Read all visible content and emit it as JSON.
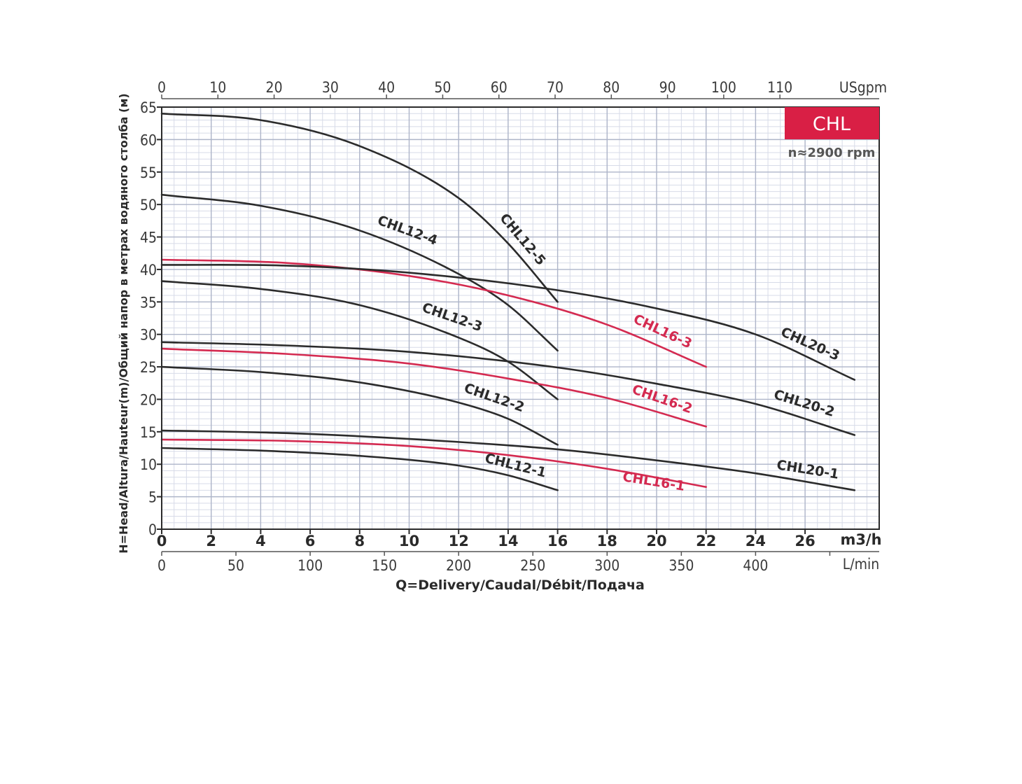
{
  "chart_data": {
    "type": "line",
    "badge": "CHL",
    "speed_note": "n≈2900 rpm",
    "ylabel": "H=Head/Altura/Hauteur(m)/Общий напор в метрах водяного столба (м)",
    "xlabel": "Q=Delivery/Caudal/Débit/Подача",
    "x_unit": "m3/h",
    "top_unit": "USgpm",
    "lmin_unit": "L/min",
    "xlim": [
      0,
      29
    ],
    "ylim": [
      0,
      65
    ],
    "grid": true,
    "x_ticks": [
      0,
      2,
      4,
      6,
      8,
      10,
      12,
      14,
      16,
      18,
      20,
      22,
      24,
      26
    ],
    "y_ticks": [
      0,
      5,
      10,
      15,
      20,
      25,
      30,
      35,
      40,
      45,
      50,
      55,
      60,
      65
    ],
    "usgpm_ticks": [
      0,
      10,
      20,
      30,
      40,
      50,
      60,
      70,
      80,
      90,
      100,
      110
    ],
    "lmin_ticks": [
      0,
      50,
      100,
      150,
      200,
      250,
      300,
      350,
      400
    ],
    "colors": {
      "dark": "#2b2b2b",
      "red": "#d42a50",
      "badge": "#d91f45",
      "grid": "#c9cfe2"
    },
    "series": [
      {
        "name": "CHL12-5",
        "color": "dark",
        "x": [
          0,
          4,
          8,
          12,
          14,
          16
        ],
        "y": [
          64,
          63,
          59,
          51,
          44,
          35
        ],
        "label": "CHL12-5"
      },
      {
        "name": "CHL12-4",
        "color": "dark",
        "x": [
          0,
          4,
          8,
          12,
          14,
          16
        ],
        "y": [
          51.5,
          49.8,
          46,
          39.3,
          34.5,
          27.5
        ],
        "label": "CHL12-4"
      },
      {
        "name": "CHL12-3",
        "color": "dark",
        "x": [
          0,
          4,
          8,
          12,
          14,
          16
        ],
        "y": [
          38.2,
          37,
          34.5,
          29.5,
          25.8,
          20
        ],
        "label": "CHL12-3"
      },
      {
        "name": "CHL12-2",
        "color": "dark",
        "x": [
          0,
          4,
          8,
          12,
          14,
          16
        ],
        "y": [
          25,
          24.2,
          22.6,
          19.5,
          17,
          13
        ],
        "label": "CHL12-2"
      },
      {
        "name": "CHL12-1",
        "color": "dark",
        "x": [
          0,
          4,
          8,
          12,
          14,
          16
        ],
        "y": [
          12.5,
          12.1,
          11.3,
          9.8,
          8.3,
          6
        ],
        "label": "CHL12-1"
      },
      {
        "name": "CHL16-3",
        "color": "red",
        "x": [
          0,
          5,
          10,
          14,
          18,
          22
        ],
        "y": [
          41.5,
          41,
          39,
          36,
          31.5,
          25
        ],
        "label": "CHL16-3"
      },
      {
        "name": "CHL16-2",
        "color": "red",
        "x": [
          0,
          5,
          10,
          14,
          18,
          22
        ],
        "y": [
          27.8,
          27,
          25.5,
          23.2,
          20.2,
          15.8
        ],
        "label": "CHL16-2"
      },
      {
        "name": "CHL16-1",
        "color": "red",
        "x": [
          0,
          5,
          10,
          14,
          18,
          22
        ],
        "y": [
          13.8,
          13.6,
          12.8,
          11.4,
          9.3,
          6.5
        ],
        "label": "CHL16-1"
      },
      {
        "name": "CHL20-3",
        "color": "dark",
        "x": [
          0,
          5,
          10,
          16,
          20,
          24,
          28
        ],
        "y": [
          40.7,
          40.6,
          39.5,
          36.8,
          34,
          30,
          23
        ],
        "label": "CHL20-3"
      },
      {
        "name": "CHL20-2",
        "color": "dark",
        "x": [
          0,
          5,
          10,
          16,
          20,
          24,
          28
        ],
        "y": [
          28.8,
          28.3,
          27.3,
          24.9,
          22.4,
          19.3,
          14.5
        ],
        "label": "CHL20-2"
      },
      {
        "name": "CHL20-1",
        "color": "dark",
        "x": [
          0,
          5,
          10,
          16,
          20,
          24,
          28
        ],
        "y": [
          15.2,
          14.8,
          13.9,
          12.3,
          10.6,
          8.6,
          6
        ],
        "label": "CHL20-1"
      }
    ]
  }
}
